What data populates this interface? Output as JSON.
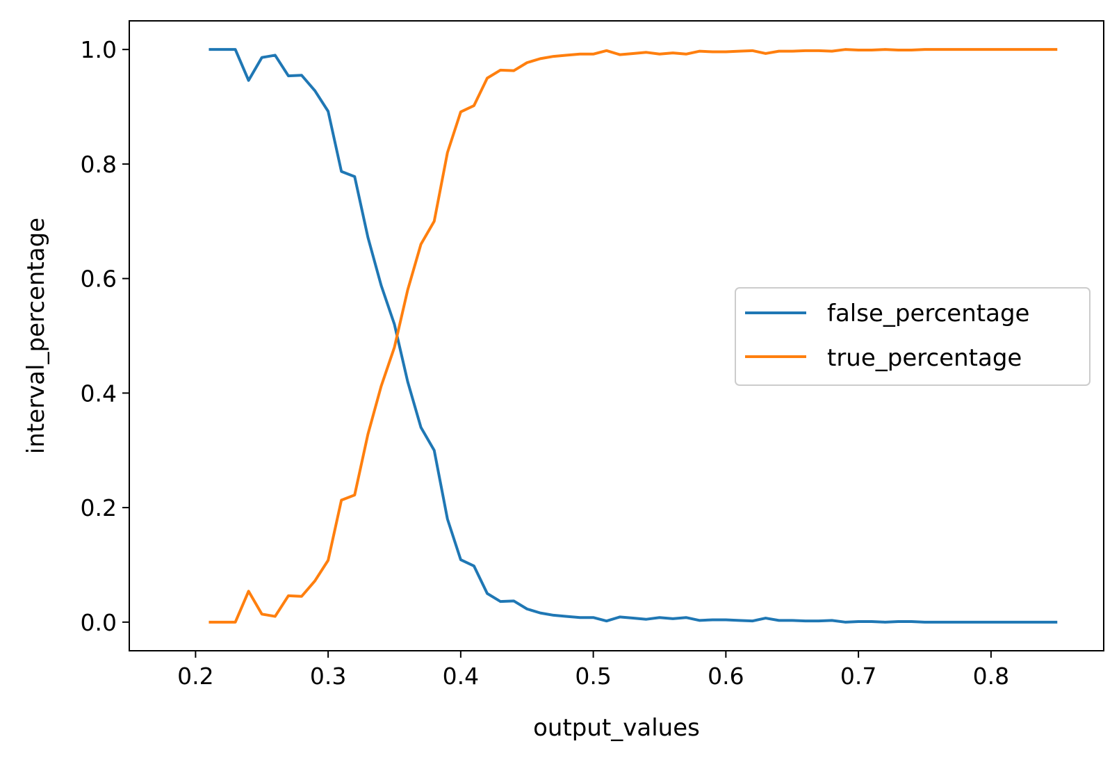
{
  "chart_data": {
    "type": "line",
    "title": "",
    "xlabel": "output_values",
    "ylabel": "interval_percentage",
    "xlim": [
      0.15,
      0.885
    ],
    "ylim": [
      -0.05,
      1.05
    ],
    "xticks": [
      0.2,
      0.3,
      0.4,
      0.5,
      0.6,
      0.7,
      0.8
    ],
    "xtick_labels": [
      "0.2",
      "0.3",
      "0.4",
      "0.5",
      "0.6",
      "0.7",
      "0.8"
    ],
    "yticks": [
      0.0,
      0.2,
      0.4,
      0.6,
      0.8,
      1.0
    ],
    "ytick_labels": [
      "0.0",
      "0.2",
      "0.4",
      "0.6",
      "0.8",
      "1.0"
    ],
    "grid": false,
    "legend_position": "center-right",
    "x": [
      0.21,
      0.22,
      0.23,
      0.24,
      0.25,
      0.26,
      0.27,
      0.28,
      0.29,
      0.3,
      0.31,
      0.32,
      0.33,
      0.34,
      0.35,
      0.36,
      0.37,
      0.38,
      0.39,
      0.4,
      0.41,
      0.42,
      0.43,
      0.44,
      0.45,
      0.46,
      0.47,
      0.48,
      0.49,
      0.5,
      0.51,
      0.52,
      0.53,
      0.54,
      0.55,
      0.56,
      0.57,
      0.58,
      0.59,
      0.6,
      0.61,
      0.62,
      0.63,
      0.64,
      0.65,
      0.66,
      0.67,
      0.68,
      0.69,
      0.7,
      0.71,
      0.72,
      0.73,
      0.74,
      0.75,
      0.76,
      0.77,
      0.78,
      0.79,
      0.8,
      0.81,
      0.82,
      0.83,
      0.84,
      0.85
    ],
    "series": [
      {
        "name": "false_percentage",
        "color": "#1f77b4",
        "values": [
          1.0,
          1.0,
          1.0,
          0.946,
          0.986,
          0.99,
          0.954,
          0.955,
          0.928,
          0.892,
          0.787,
          0.778,
          0.672,
          0.588,
          0.52,
          0.42,
          0.34,
          0.3,
          0.18,
          0.109,
          0.098,
          0.05,
          0.036,
          0.037,
          0.023,
          0.016,
          0.012,
          0.01,
          0.008,
          0.008,
          0.002,
          0.009,
          0.007,
          0.005,
          0.008,
          0.006,
          0.008,
          0.003,
          0.004,
          0.004,
          0.003,
          0.002,
          0.007,
          0.003,
          0.003,
          0.002,
          0.002,
          0.003,
          0.0,
          0.001,
          0.001,
          0.0,
          0.001,
          0.001,
          0.0,
          0.0,
          0.0,
          0.0,
          0.0,
          0.0,
          0.0,
          0.0,
          0.0,
          0.0,
          0.0
        ]
      },
      {
        "name": "true_percentage",
        "color": "#ff7f0e",
        "values": [
          0.0,
          0.0,
          0.0,
          0.054,
          0.014,
          0.01,
          0.046,
          0.045,
          0.072,
          0.108,
          0.213,
          0.222,
          0.328,
          0.412,
          0.48,
          0.58,
          0.66,
          0.7,
          0.82,
          0.891,
          0.902,
          0.95,
          0.964,
          0.963,
          0.977,
          0.984,
          0.988,
          0.99,
          0.992,
          0.992,
          0.998,
          0.991,
          0.993,
          0.995,
          0.992,
          0.994,
          0.992,
          0.997,
          0.996,
          0.996,
          0.997,
          0.998,
          0.993,
          0.997,
          0.997,
          0.998,
          0.998,
          0.997,
          1.0,
          0.999,
          0.999,
          1.0,
          0.999,
          0.999,
          1.0,
          1.0,
          1.0,
          1.0,
          1.0,
          1.0,
          1.0,
          1.0,
          1.0,
          1.0,
          1.0
        ]
      }
    ]
  }
}
